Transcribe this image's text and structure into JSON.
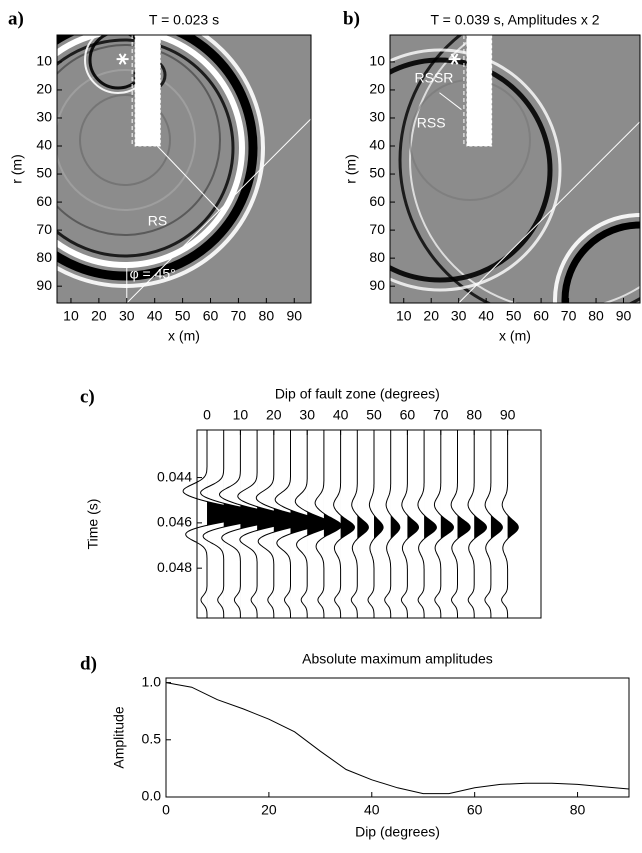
{
  "chart_data": [
    {
      "type": "image",
      "panel_label": "a)",
      "title": "T = 0.023 s",
      "xlabel": "x (m)",
      "ylabel": "r (m)",
      "xlim": [
        5,
        96
      ],
      "ylim": [
        96,
        0.4
      ],
      "xticks": [
        10,
        20,
        30,
        40,
        50,
        60,
        70,
        80,
        90
      ],
      "yticks": [
        10,
        20,
        30,
        40,
        50,
        60,
        70,
        80,
        90
      ],
      "annotations": [
        "RS",
        "φ = 45°"
      ]
    },
    {
      "type": "image",
      "panel_label": "b)",
      "title": "T = 0.039 s, Amplitudes x 2",
      "xlabel": "x (m)",
      "ylabel": "r (m)",
      "xlim": [
        5,
        96
      ],
      "ylim": [
        96,
        0.4
      ],
      "xticks": [
        10,
        20,
        30,
        40,
        50,
        60,
        70,
        80,
        90
      ],
      "yticks": [
        10,
        20,
        30,
        40,
        50,
        60,
        70,
        80,
        90
      ],
      "annotations": [
        "RSSR",
        "RSS"
      ]
    },
    {
      "type": "wiggle",
      "panel_label": "c)",
      "xlabel": "Dip of fault zone (degrees)",
      "ylabel": "Time (s)",
      "xlim": [
        -3,
        100
      ],
      "ylim": [
        0.0502,
        0.0419
      ],
      "xticks": [
        0,
        10,
        20,
        30,
        40,
        50,
        60,
        70,
        80,
        90
      ],
      "yticks": [
        0.044,
        0.046,
        0.048
      ],
      "x": [
        0,
        5,
        10,
        15,
        20,
        25,
        30,
        35,
        40,
        45,
        50,
        55,
        60,
        65,
        70,
        75,
        80,
        85,
        90
      ]
    },
    {
      "type": "line",
      "panel_label": "d)",
      "title": "Absolute maximum amplitudes",
      "xlabel": "Dip (degrees)",
      "ylabel": "Amplitude",
      "xlim": [
        0,
        90
      ],
      "ylim": [
        0,
        1.04
      ],
      "xticks": [
        0,
        20,
        40,
        60,
        80
      ],
      "yticks": [
        {
          "value": 0,
          "label": "0.0"
        },
        0.5,
        {
          "value": 1,
          "label": "1.0"
        }
      ],
      "color": "#000000",
      "x": [
        0,
        5,
        10,
        15,
        20,
        25,
        30,
        35,
        40,
        45,
        50,
        55,
        60,
        65,
        70,
        75,
        80,
        85,
        90
      ],
      "values": [
        1.0,
        0.96,
        0.85,
        0.77,
        0.68,
        0.57,
        0.4,
        0.24,
        0.15,
        0.08,
        0.03,
        0.03,
        0.08,
        0.11,
        0.12,
        0.12,
        0.11,
        0.09,
        0.07
      ]
    }
  ]
}
